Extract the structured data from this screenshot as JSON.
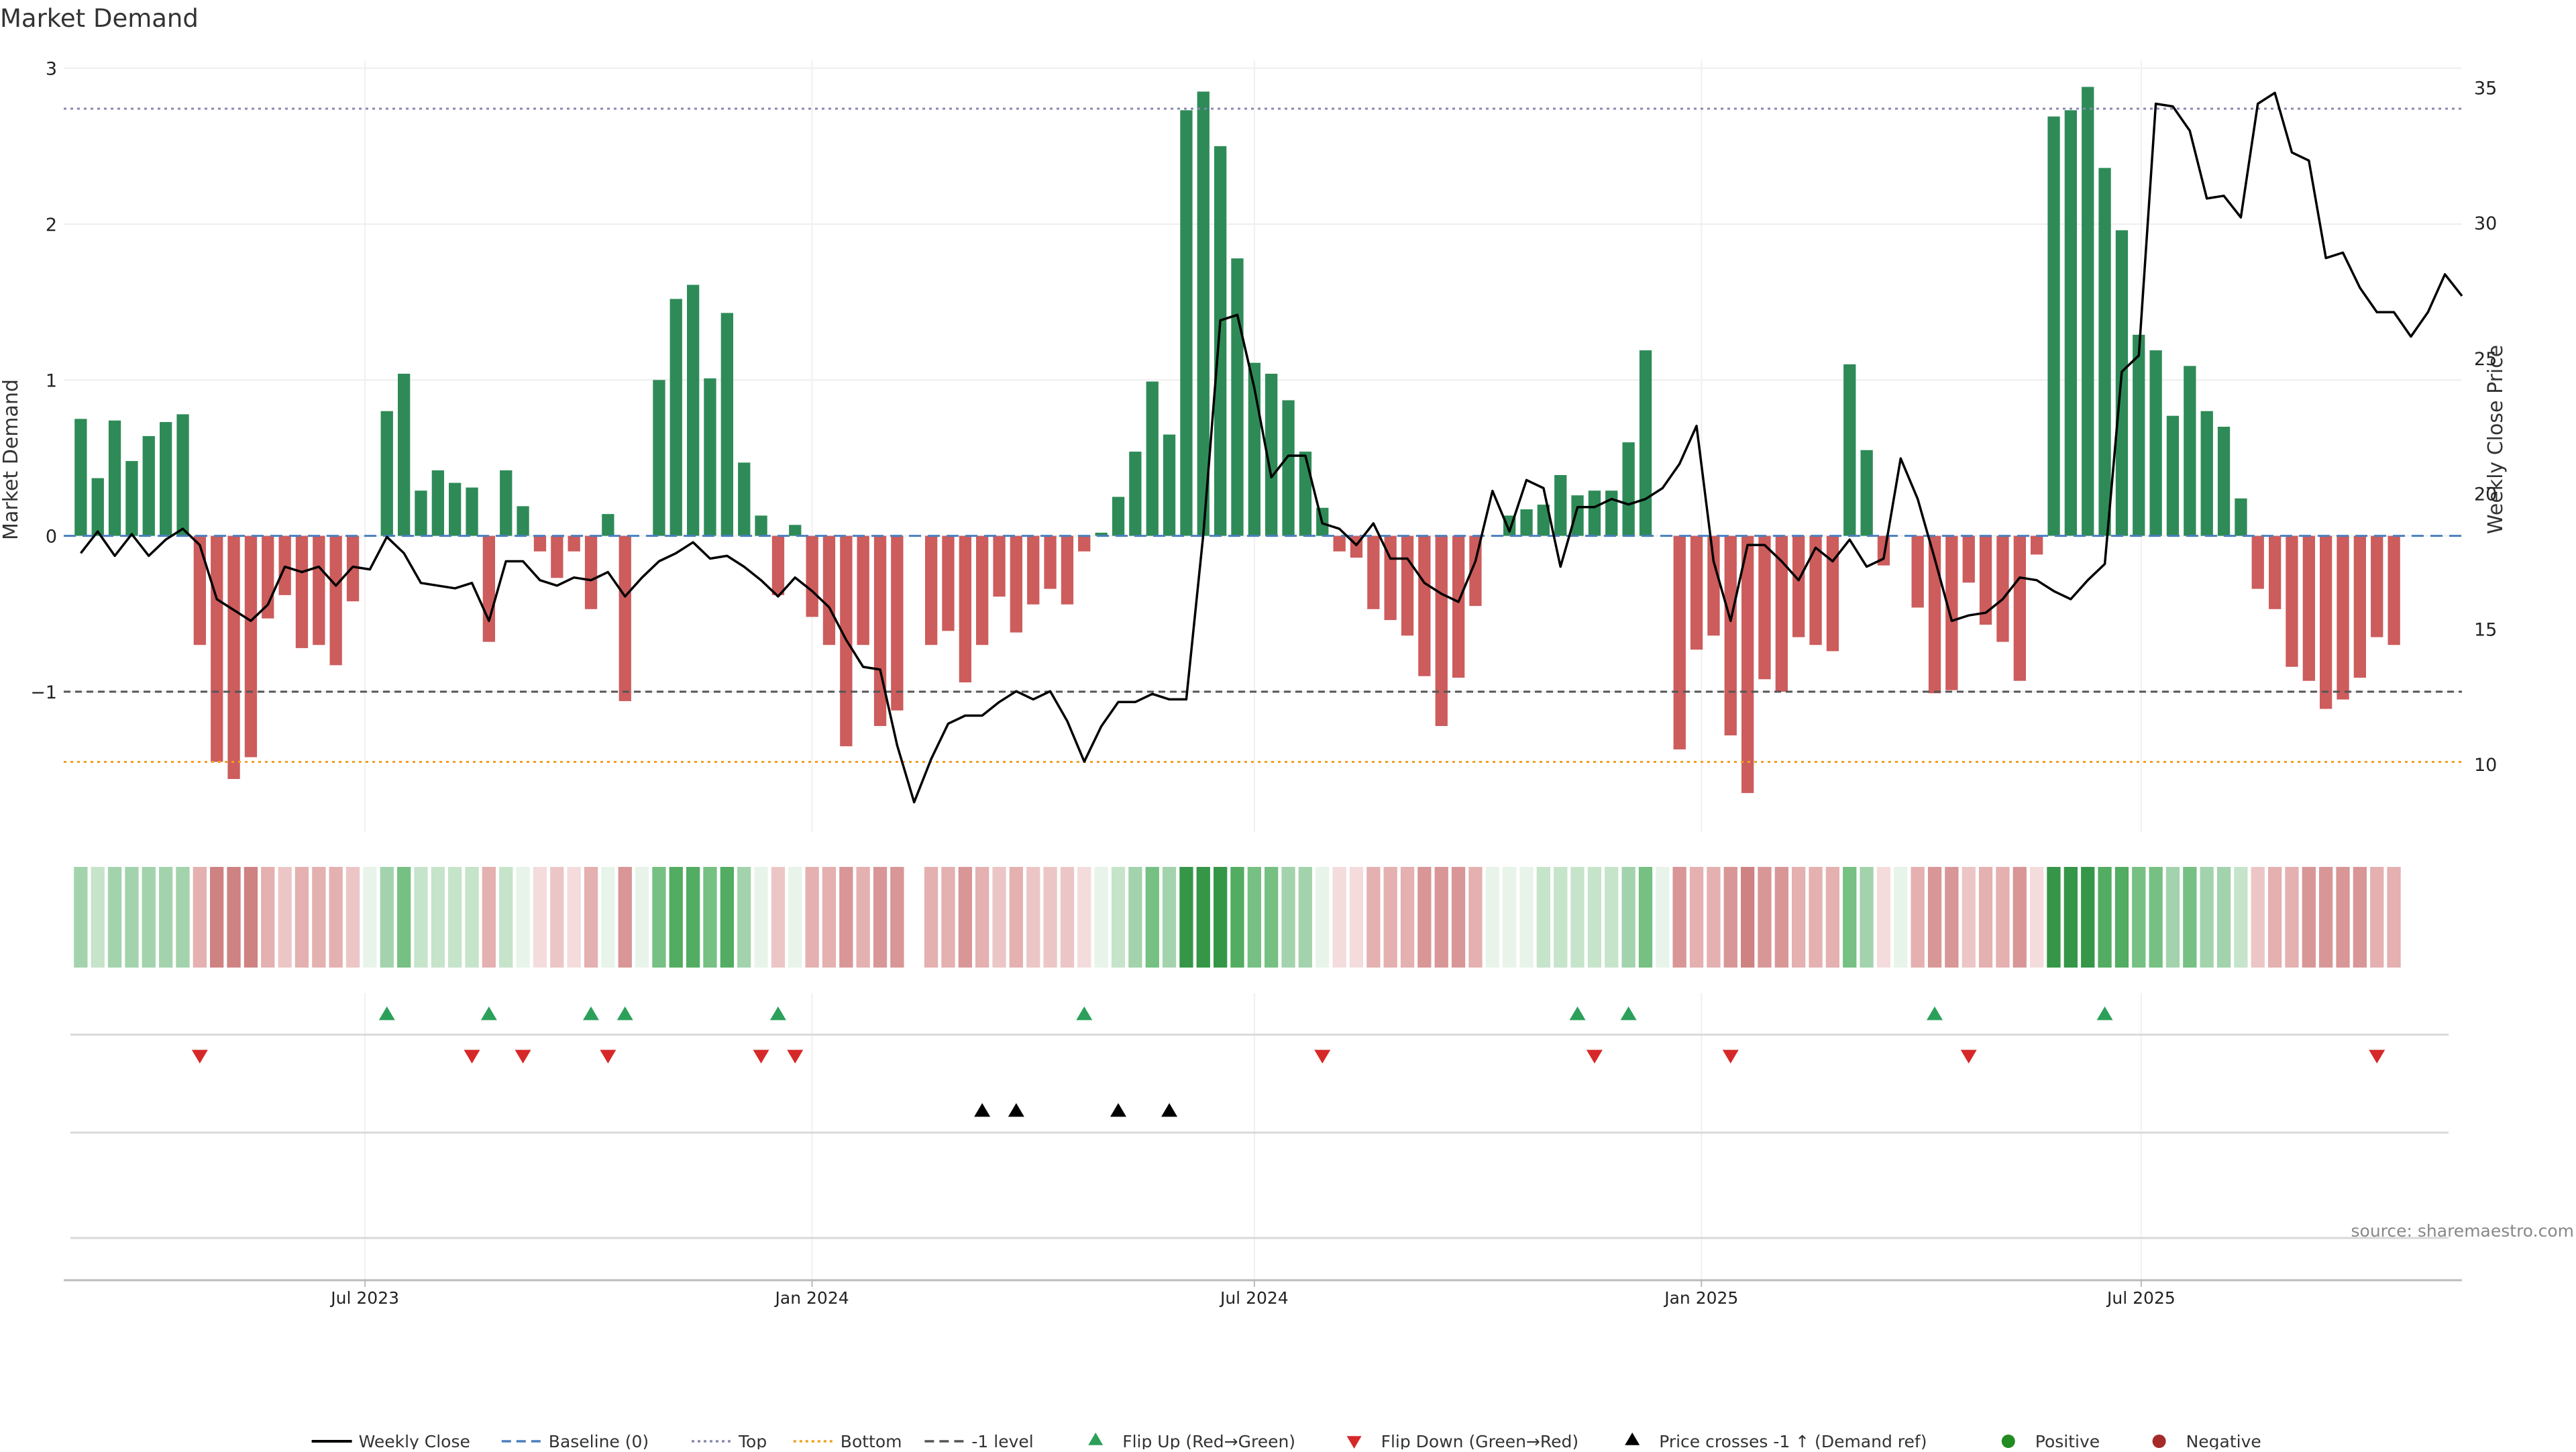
{
  "chart_data": {
    "type": "bar",
    "title": "Market Demand",
    "ylabel": "Market Demand",
    "y2label": "Weekly Close Price",
    "source": "source: sharemaestro.com",
    "ylim": [
      -1.9,
      3.05
    ],
    "y2lim": [
      7.5,
      36
    ],
    "yticks": [
      {
        "v": -1,
        "label": "−1"
      },
      {
        "v": 0,
        "label": "0"
      },
      {
        "v": 1,
        "label": "1"
      },
      {
        "v": 2,
        "label": "2"
      },
      {
        "v": 3,
        "label": "3"
      }
    ],
    "y2ticks": [
      {
        "v": 10,
        "label": "10"
      },
      {
        "v": 15,
        "label": "15"
      },
      {
        "v": 20,
        "label": "20"
      },
      {
        "v": 25,
        "label": "25"
      },
      {
        "v": 30,
        "label": "30"
      },
      {
        "v": 35,
        "label": "35"
      }
    ],
    "x_start": "2023-02-27",
    "x_end": "2025-11-10",
    "x_ticks": [
      {
        "date": "2023-07-01",
        "label": "Jul 2023"
      },
      {
        "date": "2024-01-01",
        "label": "Jan 2024"
      },
      {
        "date": "2024-07-01",
        "label": "Jul 2024"
      },
      {
        "date": "2025-01-01",
        "label": "Jan 2025"
      },
      {
        "date": "2025-07-01",
        "label": "Jul 2025"
      }
    ],
    "reference_lines": [
      {
        "name": "Top",
        "value": 2.74,
        "color": "#8888b0",
        "style": "dotted"
      },
      {
        "name": "Bottom",
        "value": -1.45,
        "color": "#f0a020",
        "style": "dotted"
      },
      {
        "name": "-1 level",
        "value": -1,
        "color": "#555555",
        "style": "dashed"
      }
    ],
    "first_week": "2023-03-06",
    "demand": [
      0.75,
      0.37,
      0.74,
      0.48,
      0.64,
      0.73,
      0.78,
      -0.7,
      -1.45,
      -1.56,
      -1.42,
      -0.53,
      -0.38,
      -0.72,
      -0.7,
      -0.83,
      -0.42,
      0,
      0.8,
      1.04,
      0.29,
      0.42,
      0.34,
      0.31,
      -0.68,
      0.42,
      0.19,
      -0.1,
      -0.27,
      -0.1,
      -0.47,
      0.14,
      -1.06,
      0,
      1.0,
      1.52,
      1.61,
      1.01,
      1.43,
      0.47,
      0.13,
      -0.38,
      0.07,
      -0.52,
      -0.7,
      -1.35,
      -0.7,
      -1.22,
      -1.12,
      null,
      -0.7,
      -0.61,
      -0.94,
      -0.7,
      -0.39,
      -0.62,
      -0.44,
      -0.34,
      -0.44,
      -0.1,
      0.02,
      0.25,
      0.54,
      0.99,
      0.65,
      2.73,
      2.85,
      2.5,
      1.78,
      1.11,
      1.04,
      0.87,
      0.54,
      0.18,
      -0.1,
      -0.14,
      -0.47,
      -0.54,
      -0.64,
      -0.9,
      -1.22,
      -0.91,
      -0.45,
      0,
      0.13,
      0.17,
      0.2,
      0.39,
      0.26,
      0.29,
      0.29,
      0.6,
      1.19,
      0,
      -1.37,
      -0.73,
      -0.64,
      -1.28,
      -1.65,
      -0.92,
      -1.0,
      -0.65,
      -0.7,
      -0.74,
      1.1,
      0.55,
      -0.19,
      0,
      -0.46,
      -1.01,
      -0.99,
      -0.3,
      -0.57,
      -0.68,
      -0.93,
      -0.12,
      2.69,
      2.73,
      2.88,
      2.36,
      1.96,
      1.29,
      1.19,
      0.77,
      1.09,
      0.8,
      0.7,
      0.24,
      -0.34,
      -0.47,
      -0.84,
      -0.93,
      -1.11,
      -1.05,
      -0.91,
      -0.65,
      -0.7
    ],
    "price": [
      17.8,
      18.6,
      17.7,
      18.5,
      17.7,
      18.3,
      18.7,
      18.1,
      16.1,
      15.7,
      15.3,
      15.9,
      17.3,
      17.1,
      17.3,
      16.6,
      17.3,
      17.2,
      18.4,
      17.8,
      16.7,
      16.6,
      16.5,
      16.7,
      15.3,
      17.5,
      17.5,
      16.8,
      16.6,
      16.9,
      16.8,
      17.1,
      16.2,
      16.9,
      17.5,
      17.8,
      18.2,
      17.6,
      17.7,
      17.3,
      16.8,
      16.2,
      16.9,
      16.4,
      15.8,
      14.6,
      13.6,
      13.5,
      10.7,
      8.6,
      10.2,
      11.5,
      11.8,
      11.8,
      12.3,
      12.7,
      12.4,
      12.7,
      11.6,
      10.1,
      11.4,
      12.3,
      12.3,
      12.6,
      12.4,
      12.4,
      18.5,
      26.4,
      26.6,
      23.9,
      20.6,
      21.4,
      21.4,
      18.9,
      18.7,
      18.1,
      18.9,
      17.6,
      17.6,
      16.7,
      16.3,
      16.0,
      17.5,
      20.1,
      18.6,
      20.5,
      20.2,
      17.3,
      19.5,
      19.5,
      19.8,
      19.6,
      19.8,
      20.2,
      21.1,
      22.5,
      17.5,
      15.3,
      18.1,
      18.1,
      17.5,
      16.8,
      18.0,
      17.5,
      18.3,
      17.3,
      17.6,
      21.3,
      19.8,
      17.6,
      15.3,
      15.5,
      15.6,
      16.1,
      16.9,
      16.8,
      16.4,
      16.1,
      16.8,
      17.4,
      24.5,
      25.1,
      34.4,
      34.3,
      33.4,
      30.9,
      31.0,
      30.2,
      34.4,
      34.8,
      32.6,
      32.3,
      28.7,
      28.9,
      27.6,
      26.7,
      26.7,
      25.8,
      26.7,
      28.1,
      27.3
    ],
    "heat_palette": {
      "pos": [
        [
          232,
          244,
          234
        ],
        [
          197,
          228,
          202
        ],
        [
          163,
          211,
          172
        ],
        [
          117,
          192,
          130
        ],
        [
          82,
          172,
          98
        ],
        [
          53,
          150,
          72
        ]
      ],
      "neg": [
        [
          244,
          220,
          220
        ],
        [
          236,
          198,
          198
        ],
        [
          228,
          176,
          176
        ],
        [
          216,
          150,
          150
        ],
        [
          206,
          130,
          130
        ],
        [
          198,
          112,
          112
        ]
      ]
    },
    "flip_up_dates": [
      "2023-07-10",
      "2023-08-21",
      "2023-10-02",
      "2023-10-16",
      "2023-12-18",
      "2024-04-22",
      "2024-11-11",
      "2024-12-02",
      "2025-04-07",
      "2025-06-16"
    ],
    "flip_down_dates": [
      "2023-04-24",
      "2023-08-14",
      "2023-09-04",
      "2023-10-09",
      "2023-12-11",
      "2023-12-25",
      "2024-07-29",
      "2024-11-18",
      "2025-01-13",
      "2025-04-21",
      "2025-10-06"
    ],
    "price_cross_dates": [
      "2024-03-11",
      "2024-03-25",
      "2024-05-06",
      "2024-05-27"
    ],
    "colors": {
      "pos_bar": "#2e8b57",
      "neg_bar": "#cd5c5c",
      "price": "#000000",
      "baseline": "#4a7fbf",
      "flip_up": "#2ca05a",
      "flip_down": "#d62828",
      "cross": "#000000",
      "positive_dot": "#228b22",
      "negative_dot": "#a52a2a"
    },
    "legend": [
      {
        "label": "Weekly Close",
        "kind": "line",
        "color": "#000000"
      },
      {
        "label": "Baseline (0)",
        "kind": "dash",
        "color": "#4a7fbf"
      },
      {
        "label": "Top",
        "kind": "dot",
        "color": "#8888b0"
      },
      {
        "label": "Bottom",
        "kind": "dot",
        "color": "#f0a020"
      },
      {
        "label": "-1 level",
        "kind": "dash",
        "color": "#555555"
      },
      {
        "label": "Flip Up (Red→Green)",
        "kind": "tri-up",
        "color": "#2ca05a"
      },
      {
        "label": "Flip Down (Green→Red)",
        "kind": "tri-down",
        "color": "#d62828"
      },
      {
        "label": "Price crosses -1 ↑ (Demand ref)",
        "kind": "tri-up",
        "color": "#000000"
      },
      {
        "label": "Positive",
        "kind": "circle",
        "color": "#228b22"
      },
      {
        "label": "Negative",
        "kind": "circle",
        "color": "#a52a2a"
      }
    ],
    "legend_placement": "bottom",
    "grid": true
  }
}
